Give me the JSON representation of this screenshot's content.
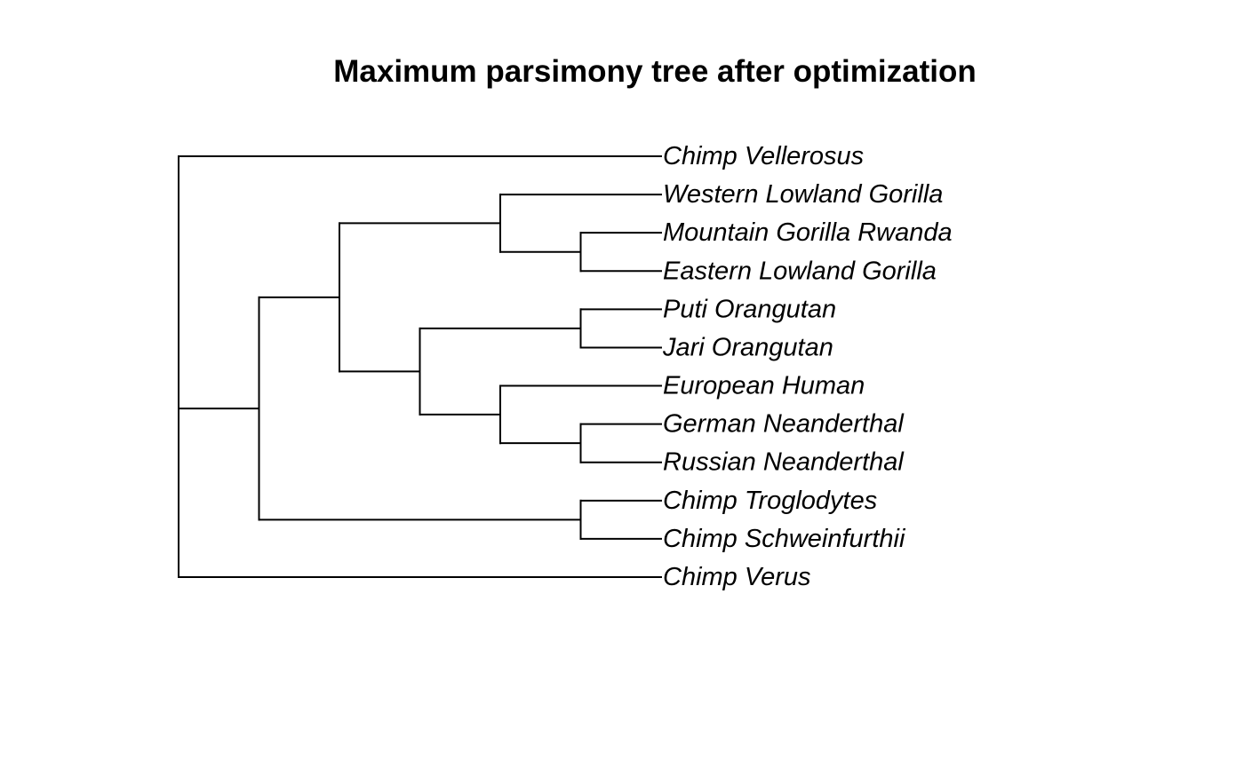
{
  "title": "Maximum parsimony tree after optimization",
  "tree": {
    "tips": [
      "Chimp Vellerosus",
      "Western Lowland Gorilla",
      "Mountain Gorilla Rwanda",
      "Eastern Lowland Gorilla",
      "Puti Orangutan",
      "Jari Orangutan",
      "European Human",
      "German Neanderthal",
      "Russian Neanderthal",
      "Chimp Troglodytes",
      "Chimp Schweinfurthii",
      "Chimp Verus"
    ],
    "nodes": [
      {
        "id": "root",
        "depth": 0,
        "children": [
          "Chimp Vellerosus",
          "n1",
          "Chimp Verus"
        ]
      },
      {
        "id": "n1",
        "depth": 1,
        "children": [
          "n2",
          "n9"
        ]
      },
      {
        "id": "n2",
        "depth": 2,
        "children": [
          "n3",
          "n5"
        ]
      },
      {
        "id": "n3",
        "depth": 4,
        "children": [
          "Western Lowland Gorilla",
          "n4"
        ]
      },
      {
        "id": "n4",
        "depth": 5,
        "children": [
          "Mountain Gorilla Rwanda",
          "Eastern Lowland Gorilla"
        ]
      },
      {
        "id": "n5",
        "depth": 3,
        "children": [
          "n6",
          "n7"
        ]
      },
      {
        "id": "n6",
        "depth": 5,
        "children": [
          "Puti Orangutan",
          "Jari Orangutan"
        ]
      },
      {
        "id": "n7",
        "depth": 4,
        "children": [
          "European Human",
          "n8"
        ]
      },
      {
        "id": "n8",
        "depth": 5,
        "children": [
          "German Neanderthal",
          "Russian Neanderthal"
        ]
      },
      {
        "id": "n9",
        "depth": 5,
        "children": [
          "Chimp Troglodytes",
          "Chimp Schweinfurthii"
        ]
      }
    ],
    "tip_depth": 6
  }
}
